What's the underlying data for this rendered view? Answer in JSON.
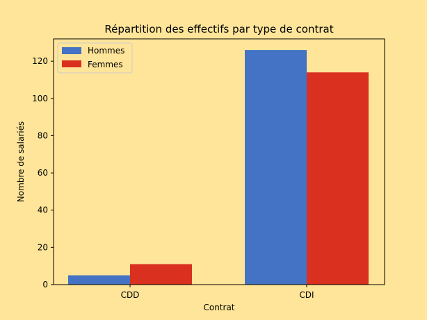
{
  "chart_data": {
    "type": "bar",
    "title": "Répartition des effectifs par type de contrat",
    "xlabel": "Contrat",
    "ylabel": "Nombre de salariés",
    "categories": [
      "CDD",
      "CDI"
    ],
    "series": [
      {
        "name": "Hommes",
        "values": [
          5,
          126
        ],
        "color": "#4472c4"
      },
      {
        "name": "Femmes",
        "values": [
          11,
          114
        ],
        "color": "#d9301f"
      }
    ],
    "ylim": [
      0,
      132
    ],
    "yticks": [
      0,
      20,
      40,
      60,
      80,
      100,
      120
    ],
    "legend_position": "top-left",
    "grid": false,
    "background": "#ffe599"
  }
}
